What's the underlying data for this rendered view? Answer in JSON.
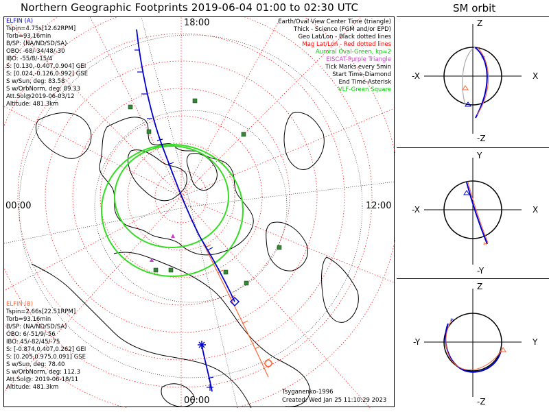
{
  "title": "Northern Geographic Footprints 2019-06-04 01:00 to 02:30 UTC",
  "sm_title": "SM orbit",
  "map": {
    "mlt_labels": {
      "top": "18:00",
      "left": "00:00",
      "right": "12:00",
      "bottom": "06:00"
    },
    "legend": [
      {
        "text": "Earth/Oval View Center Time (triangle)",
        "color": "#000000"
      },
      {
        "text": "Thick - Science (FGM and/or EPD)",
        "color": "#000000"
      },
      {
        "text": "Geo Lat/Lon - Black dotted lines",
        "color": "#000000"
      },
      {
        "text": "Mag Lat/Lon - Red dotted lines",
        "color": "#ff0000"
      },
      {
        "text": "Auroral Oval-Green, kp=2",
        "color": "#00cc00"
      },
      {
        "text": "EISCAT-Purple Triangle",
        "color": "#cc44cc"
      },
      {
        "text": "Tick Marks every 5min",
        "color": "#000000"
      },
      {
        "text": "Start Time-Diamond",
        "color": "#000000"
      },
      {
        "text": "End Time-Asterisk",
        "color": "#000000"
      },
      {
        "text": "VLF-Green Square",
        "color": "#00cc00"
      }
    ],
    "credit": "Tsyganenko-1996",
    "created": "Created: Wed Jan 25 11:10:29 2023"
  },
  "elfin_a": {
    "name": "ELFIN (A)",
    "color": "#0000cc",
    "lines": [
      "Tspin=4.75s[12.62RPM]",
      "Torb=93.16min",
      "B/SP: (NA/ND/SD/SA)",
      "OBO: -68/-34/48/-30",
      "IBO: -55/8/-15/4",
      "S: [0.130,-0.407,0.904] GEI",
      "S: [0.024,-0.126,0.992] GSE",
      "S w/Sun, deg: 83.58",
      "S w/OrbNorm, deg: 89.33",
      "Att.Sol@2019-06-03/12",
      "Altitude: 481.3km"
    ]
  },
  "elfin_b": {
    "name": "ELFIN (B)",
    "color": "#ff6633",
    "lines": [
      "Tspin=2.66s[22.51RPM]",
      "Torb=93.16min",
      "B/SP: (NA/ND/SD/SA)",
      "OBO: 6/-51/9/-56",
      "IBO: 45/-82/45/-75",
      "S: [-0.874,0.407,0.262] GEI",
      "S: [0.205,0.975,0.091] GSE",
      "S w/Sun, deg: 78.40",
      "S w/OrbNorm, deg: 112.3",
      "Att.Sol@: 2019-06-18/11",
      "Altitude: 481.3km"
    ]
  },
  "sm_panels": [
    {
      "top": "Z",
      "bottom": "-Z",
      "left": "-X",
      "right": "X"
    },
    {
      "top": "Y",
      "bottom": "-Y",
      "left": "-X",
      "right": "X"
    },
    {
      "top": "Z",
      "bottom": "-Z",
      "left": "-Y",
      "right": "Y"
    }
  ],
  "colors": {
    "elfin_a": "#0000cc",
    "elfin_b": "#ff6633",
    "oval": "#33dd22",
    "mag_grid": "#ff2222",
    "vlf": "#338833",
    "eiscat": "#cc44cc"
  }
}
